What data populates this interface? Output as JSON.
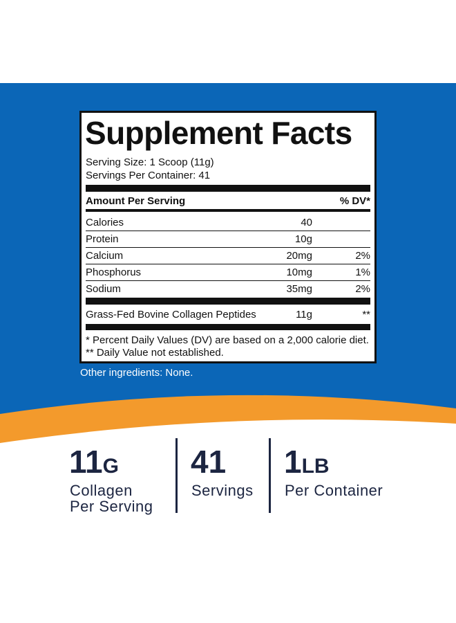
{
  "label": {
    "title": "Supplement Facts",
    "serving_size": "Serving Size: 1 Scoop (11g)",
    "servings_per_container": "Servings Per Container: 41",
    "header": [
      "Amount Per Serving",
      "% DV*"
    ],
    "rows": [
      [
        "Calories",
        "40"
      ],
      [
        "Protein",
        "10g"
      ],
      [
        "Calcium",
        "20mg",
        "2%"
      ],
      [
        "Phosphorus",
        "10mg",
        "1%"
      ],
      [
        "Sodium",
        "35mg",
        "2%"
      ]
    ],
    "ingredient": [
      "Grass-Fed Bovine Collagen Peptides",
      "11g",
      "**"
    ],
    "footnotes": [
      "* Percent Daily Values (DV) are based on a 2,000 calorie diet.",
      "** Daily Value not established."
    ]
  },
  "other_ingredients": "Other ingredients: None.",
  "stats": [
    {
      "value": "11",
      "unit": "G",
      "lines": [
        "Collagen",
        "Per Serving"
      ]
    },
    {
      "value": "41",
      "lines": [
        "Servings"
      ]
    },
    {
      "value": "1",
      "unit": "LB",
      "lines": [
        "Per Container"
      ]
    }
  ]
}
